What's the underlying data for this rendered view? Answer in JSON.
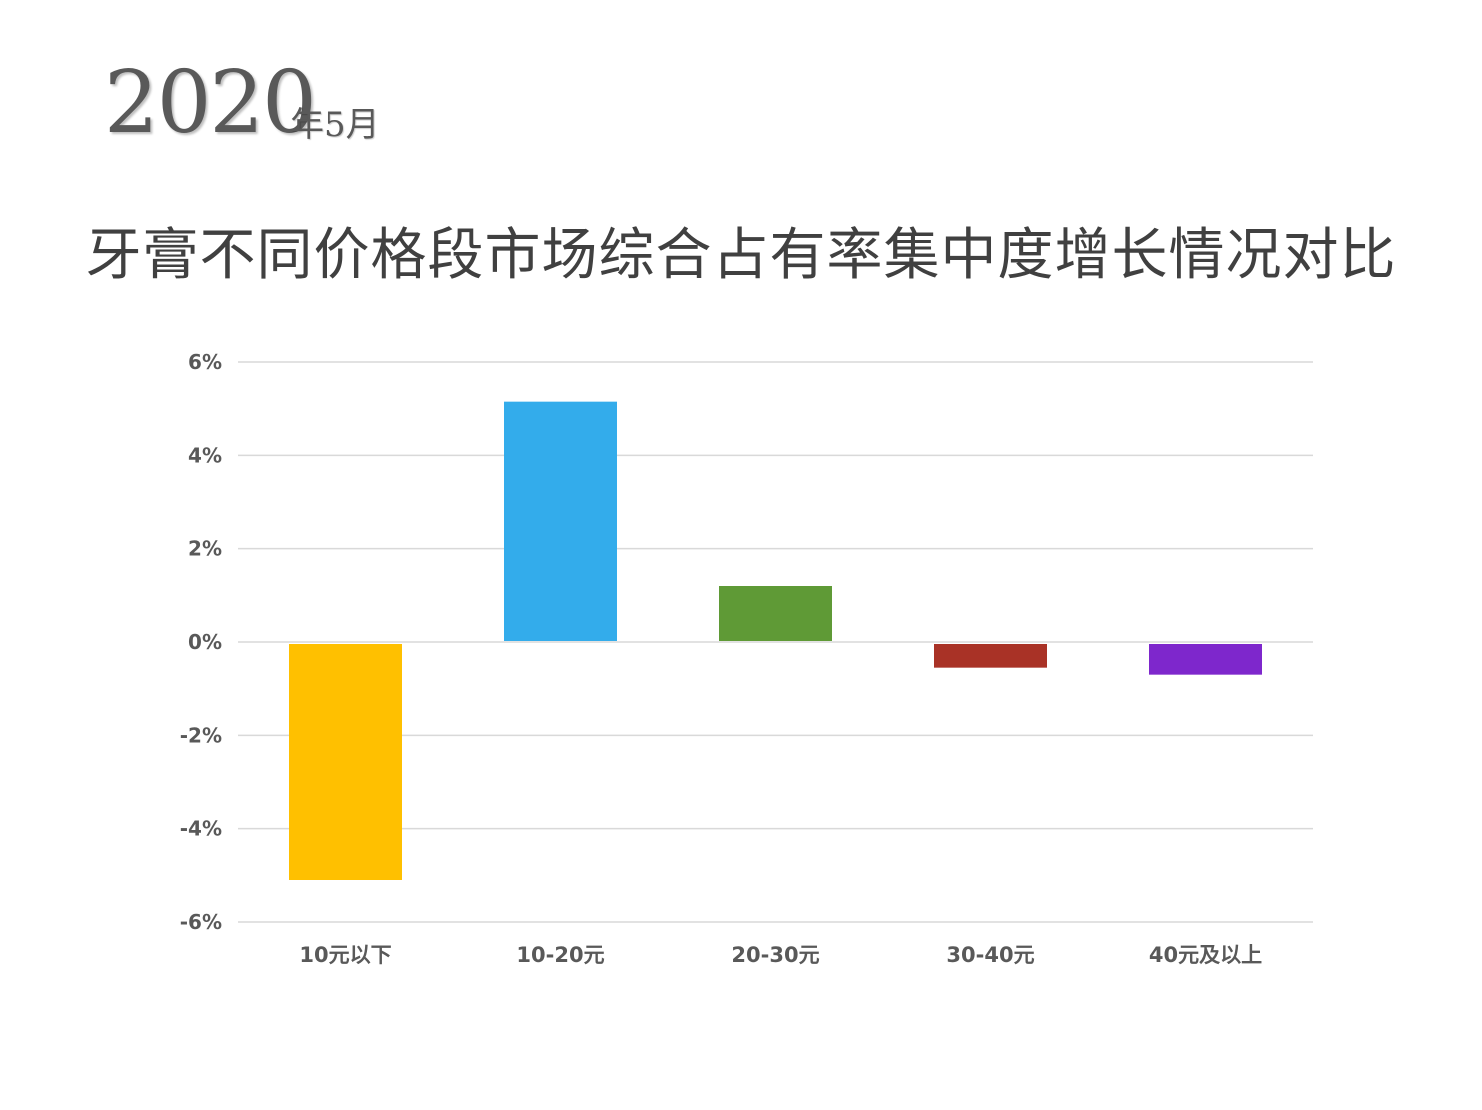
{
  "header": {
    "year": "2020",
    "month": "年5月"
  },
  "chart_data": {
    "type": "bar",
    "title": "牙膏不同价格段市场综合占有率集中度增长情况对比",
    "xlabel": "",
    "ylabel": "",
    "categories": [
      "10元以下",
      "10-20元",
      "20-30元",
      "30-40元",
      "40元及以上"
    ],
    "values": [
      -5.1,
      5.15,
      1.2,
      -0.55,
      -0.7
    ],
    "colors": [
      "#FFC000",
      "#33ACEB",
      "#5F9A36",
      "#A93226",
      "#7E27CC"
    ],
    "ylim": [
      -6,
      6
    ],
    "yticks": [
      6,
      4,
      2,
      0,
      -2,
      -4,
      -6
    ],
    "ytick_labels": [
      "6%",
      "4%",
      "2%",
      "0%",
      "-2%",
      "-4%",
      "-6%"
    ],
    "grid": true,
    "legend": "none"
  }
}
